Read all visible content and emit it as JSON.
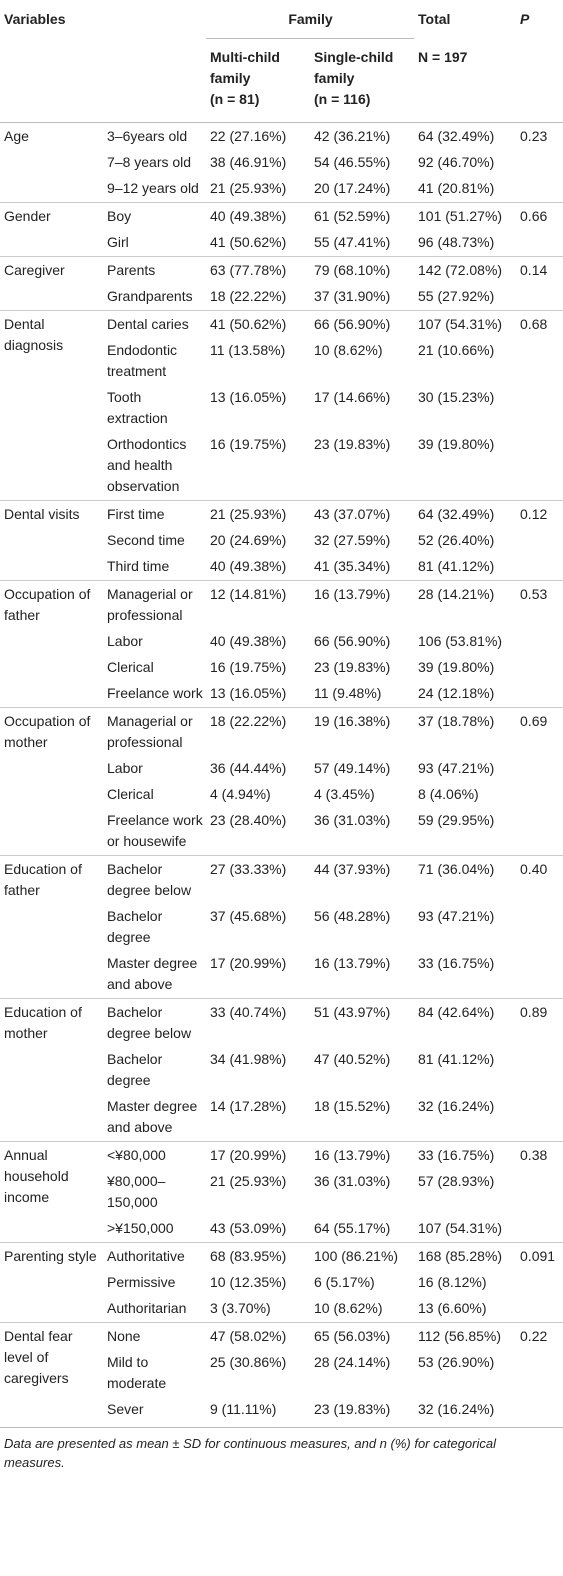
{
  "header": {
    "variables": "Variables",
    "family": "Family",
    "total": "Total",
    "p": "P",
    "multi_child": "Multi-child family",
    "multi_n": "(n = 81)",
    "single_child": "Single-child family",
    "single_n": "(n = 116)",
    "total_n": "N = 197"
  },
  "groups": [
    {
      "variable": "Age",
      "p": "0.23",
      "rows": [
        [
          "3–6years old",
          "22 (27.16%)",
          "42 (36.21%)",
          "64 (32.49%)"
        ],
        [
          "7–8 years old",
          "38 (46.91%)",
          "54 (46.55%)",
          "92 (46.70%)"
        ],
        [
          "9–12 years old",
          "21 (25.93%)",
          "20 (17.24%)",
          "41 (20.81%)"
        ]
      ]
    },
    {
      "variable": "Gender",
      "p": "0.66",
      "rows": [
        [
          "Boy",
          "40 (49.38%)",
          "61 (52.59%)",
          "101 (51.27%)"
        ],
        [
          "Girl",
          "41 (50.62%)",
          "55 (47.41%)",
          "96 (48.73%)"
        ]
      ]
    },
    {
      "variable": "Caregiver",
      "p": "0.14",
      "rows": [
        [
          "Parents",
          "63 (77.78%)",
          "79 (68.10%)",
          "142 (72.08%)"
        ],
        [
          "Grandparents",
          "18 (22.22%)",
          "37 (31.90%)",
          "55 (27.92%)"
        ]
      ]
    },
    {
      "variable": "Dental diagnosis",
      "p": "0.68",
      "rows": [
        [
          "Dental caries",
          "41 (50.62%)",
          "66 (56.90%)",
          "107 (54.31%)"
        ],
        [
          "Endodontic treatment",
          "11 (13.58%)",
          "10 (8.62%)",
          "21 (10.66%)"
        ],
        [
          "Tooth extraction",
          "13 (16.05%)",
          "17 (14.66%)",
          "30 (15.23%)"
        ],
        [
          "Orthodontics and health observation",
          "16 (19.75%)",
          "23 (19.83%)",
          "39 (19.80%)"
        ]
      ]
    },
    {
      "variable": "Dental visits",
      "p": "0.12",
      "rows": [
        [
          "First time",
          "21 (25.93%)",
          "43 (37.07%)",
          "64 (32.49%)"
        ],
        [
          "Second time",
          "20 (24.69%)",
          "32 (27.59%)",
          "52 (26.40%)"
        ],
        [
          "Third time",
          "40 (49.38%)",
          "41 (35.34%)",
          "81 (41.12%)"
        ]
      ]
    },
    {
      "variable": "Occupation of father",
      "p": "0.53",
      "rows": [
        [
          "Managerial or professional",
          "12 (14.81%)",
          "16 (13.79%)",
          "28 (14.21%)"
        ],
        [
          "Labor",
          "40 (49.38%)",
          "66 (56.90%)",
          "106 (53.81%)"
        ],
        [
          "Clerical",
          "16 (19.75%)",
          "23 (19.83%)",
          "39 (19.80%)"
        ],
        [
          "Freelance work",
          "13 (16.05%)",
          "11 (9.48%)",
          "24 (12.18%)"
        ]
      ]
    },
    {
      "variable": "Occupation of mother",
      "p": "0.69",
      "rows": [
        [
          "Managerial or professional",
          "18 (22.22%)",
          "19 (16.38%)",
          "37 (18.78%)"
        ],
        [
          "Labor",
          "36 (44.44%)",
          "57 (49.14%)",
          "93 (47.21%)"
        ],
        [
          "Clerical",
          "4 (4.94%)",
          "4 (3.45%)",
          "8 (4.06%)"
        ],
        [
          "Freelance work or housewife",
          "23 (28.40%)",
          "36 (31.03%)",
          "59 (29.95%)"
        ]
      ]
    },
    {
      "variable": "Education of father",
      "p": "0.40",
      "rows": [
        [
          "Bachelor degree below",
          "27 (33.33%)",
          "44 (37.93%)",
          "71 (36.04%)"
        ],
        [
          "Bachelor degree",
          "37 (45.68%)",
          "56 (48.28%)",
          "93 (47.21%)"
        ],
        [
          "Master degree and above",
          "17 (20.99%)",
          "16 (13.79%)",
          "33 (16.75%)"
        ]
      ]
    },
    {
      "variable": "Education of mother",
      "p": "0.89",
      "rows": [
        [
          "Bachelor degree below",
          "33 (40.74%)",
          "51 (43.97%)",
          "84 (42.64%)"
        ],
        [
          "Bachelor degree",
          "34 (41.98%)",
          "47 (40.52%)",
          "81 (41.12%)"
        ],
        [
          "Master degree and above",
          "14 (17.28%)",
          "18 (15.52%)",
          "32 (16.24%)"
        ]
      ]
    },
    {
      "variable": "Annual household income",
      "p": "0.38",
      "rows": [
        [
          "<¥80,000",
          "17 (20.99%)",
          "16 (13.79%)",
          "33 (16.75%)"
        ],
        [
          "¥80,000–150,000",
          "21 (25.93%)",
          "36 (31.03%)",
          "57 (28.93%)"
        ],
        [
          ">¥150,000",
          "43 (53.09%)",
          "64 (55.17%)",
          "107 (54.31%)"
        ]
      ]
    },
    {
      "variable": "Parenting style",
      "p": "0.091",
      "rows": [
        [
          "Authoritative",
          "68 (83.95%)",
          "100 (86.21%)",
          "168 (85.28%)"
        ],
        [
          "Permissive",
          "10 (12.35%)",
          "6 (5.17%)",
          "16 (8.12%)"
        ],
        [
          "Authoritarian",
          "3 (3.70%)",
          "10 (8.62%)",
          "13 (6.60%)"
        ]
      ]
    },
    {
      "variable": "Dental fear level of caregivers",
      "p": "0.22",
      "rows": [
        [
          "None",
          "47 (58.02%)",
          "65 (56.03%)",
          "112 (56.85%)"
        ],
        [
          "Mild to moderate",
          "25 (30.86%)",
          "28 (24.14%)",
          "53 (26.90%)"
        ],
        [
          "Sever",
          "9 (11.11%)",
          "23 (19.83%)",
          "32 (16.24%)"
        ]
      ]
    }
  ],
  "footnote": "Data are presented as mean ± SD for continuous measures, and n (%) for categorical measures."
}
